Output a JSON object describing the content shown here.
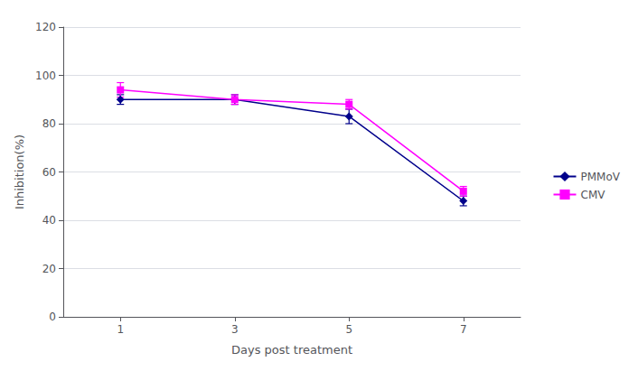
{
  "chart_data": {
    "type": "line",
    "xlabel": "Days post treatment",
    "ylabel": "Inhibition(%)",
    "x": [
      1,
      3,
      5,
      7
    ],
    "series": [
      {
        "name": "PMMoV",
        "color": "#00008B",
        "marker": "diamond",
        "values": [
          90,
          90,
          83,
          48
        ],
        "error": [
          2,
          2,
          3,
          2
        ]
      },
      {
        "name": "CMV",
        "color": "#FF00FF",
        "marker": "square",
        "values": [
          94,
          90,
          88,
          52
        ],
        "error": [
          3,
          2,
          2,
          2
        ]
      }
    ],
    "xlim": [
      0,
      8
    ],
    "xticks": [
      1,
      3,
      5,
      7
    ],
    "ylim": [
      0,
      120
    ],
    "yticks": [
      0,
      20,
      40,
      60,
      80,
      100,
      120
    ],
    "grid": true,
    "legend": "right"
  }
}
